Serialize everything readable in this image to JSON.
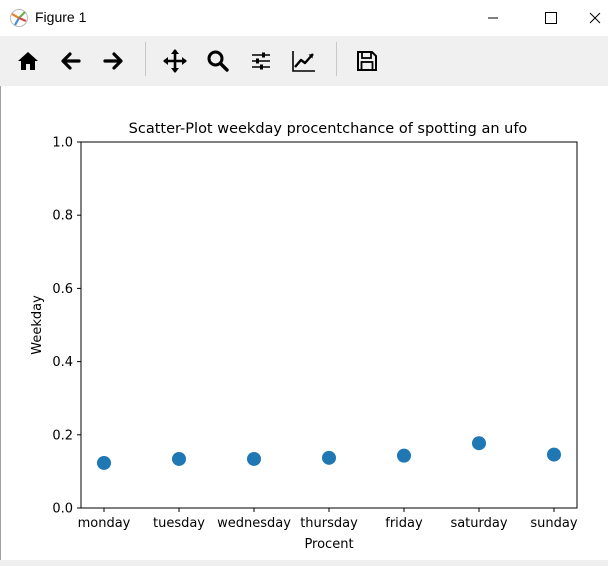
{
  "window": {
    "title": "Figure 1",
    "icons": [
      "matplotlib-logo-icon",
      "minimize-icon",
      "maximize-icon",
      "close-icon"
    ]
  },
  "toolbar": {
    "buttons": [
      {
        "name": "home-icon"
      },
      {
        "name": "back-arrow-icon"
      },
      {
        "name": "forward-arrow-icon"
      },
      {
        "name": "pan-move-icon"
      },
      {
        "name": "zoom-magnifier-icon"
      },
      {
        "name": "configure-subplots-icon"
      },
      {
        "name": "edit-axis-icon"
      },
      {
        "name": "save-disk-icon"
      }
    ]
  },
  "colors": {
    "marker": "#1f77b4",
    "toolbar_bg": "#f0f0f0"
  },
  "chart_data": {
    "type": "scatter",
    "title": "Scatter-Plot weekday procentchance of spotting an ufo",
    "xlabel": "Procent",
    "ylabel": "Weekday",
    "categories": [
      "monday",
      "tuesday",
      "wednesday",
      "thursday",
      "friday",
      "saturday",
      "sunday"
    ],
    "values": [
      0.123,
      0.134,
      0.134,
      0.137,
      0.143,
      0.177,
      0.146
    ],
    "ylim": [
      0.0,
      1.0
    ],
    "yticks": [
      "0.0",
      "0.2",
      "0.4",
      "0.6",
      "0.8",
      "1.0"
    ],
    "grid": false,
    "color": "#1f77b4"
  }
}
